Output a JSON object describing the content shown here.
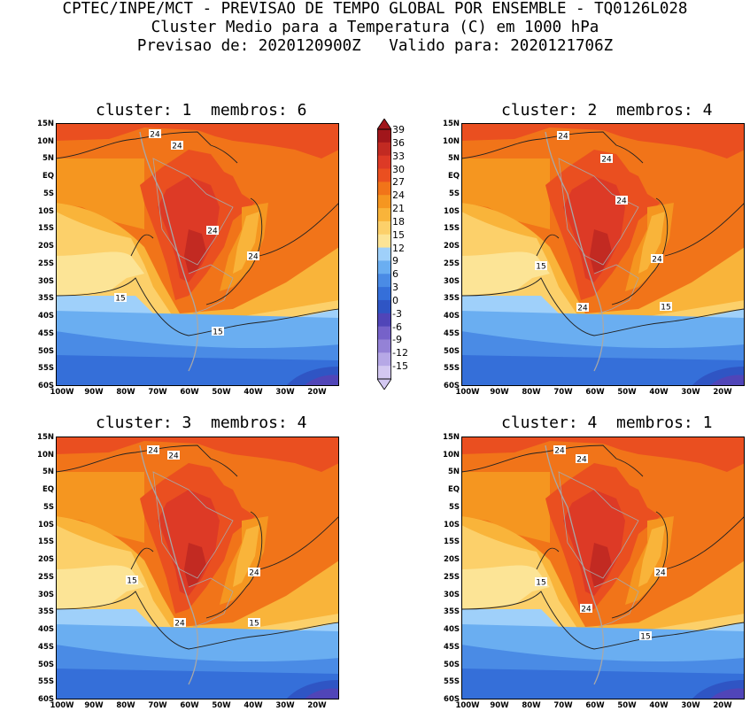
{
  "header": {
    "line1": "CPTEC/INPE/MCT - PREVISAO DE TEMPO GLOBAL POR ENSEMBLE - TQ0126L028",
    "line2": "Cluster Medio para a Temperatura (C) em 1000 hPa",
    "line3": "Previsao de: 2020120900Z   Valido para: 2020121706Z"
  },
  "lat_labels": [
    "15N",
    "10N",
    "5N",
    "EQ",
    "5S",
    "10S",
    "15S",
    "20S",
    "25S",
    "30S",
    "35S",
    "40S",
    "45S",
    "50S",
    "55S",
    "60S"
  ],
  "lon_labels": [
    "100W",
    "90W",
    "80W",
    "70W",
    "60W",
    "50W",
    "40W",
    "30W",
    "20W"
  ],
  "colorbar": {
    "levels": [
      "39",
      "36",
      "33",
      "30",
      "27",
      "24",
      "21",
      "18",
      "15",
      "12",
      "9",
      "6",
      "3",
      "0",
      "-3",
      "-6",
      "-9",
      "-12",
      "-15"
    ],
    "colors": [
      "#a1161b",
      "#c22a22",
      "#dd3a26",
      "#ea4f20",
      "#f17419",
      "#f59620",
      "#f9b43a",
      "#fcd06a",
      "#fce496",
      "#9fd0fa",
      "#6aaef1",
      "#4a8be5",
      "#356fd9",
      "#2f55c4",
      "#5045b8",
      "#7662c9",
      "#9482d6",
      "#b6a8e6",
      "#d3c8f1"
    ]
  },
  "panels": [
    {
      "title": "cluster: 1  membros: 6",
      "contour_labels": [
        "24",
        "24",
        "24",
        "24",
        "15",
        "15"
      ]
    },
    {
      "title": "cluster: 2  membros: 4",
      "contour_labels": [
        "24",
        "24",
        "24",
        "24",
        "15",
        "15",
        "24"
      ]
    },
    {
      "title": "cluster: 3  membros: 4",
      "contour_labels": [
        "24",
        "24",
        "24",
        "15",
        "15",
        "24"
      ]
    },
    {
      "title": "cluster: 4  membros: 1",
      "contour_labels": [
        "24",
        "24",
        "24",
        "15",
        "15",
        "24"
      ]
    }
  ]
}
